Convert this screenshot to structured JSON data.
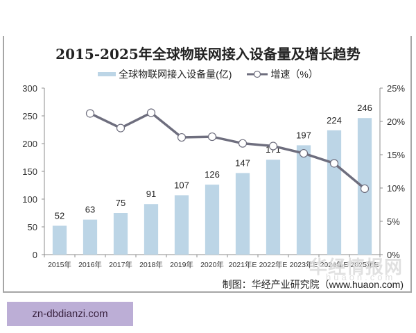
{
  "chart_data": {
    "type": "bar+line",
    "title": "2015-2025年全球物联网接入设备量及增长趋势",
    "categories": [
      "2015年",
      "2016年",
      "2017年",
      "2018年",
      "2019年",
      "2020年",
      "2021年E",
      "2022年E",
      "2023年E",
      "2024年E",
      "2025年E"
    ],
    "series": [
      {
        "name": "全球物联网接入设备量(亿)",
        "type": "bar",
        "axis": "left",
        "color": "#bcd5e6",
        "values": [
          52,
          63,
          75,
          91,
          107,
          126,
          147,
          171,
          197,
          224,
          246
        ]
      },
      {
        "name": "增速（%）",
        "type": "line",
        "axis": "right",
        "color": "#6e6e7e",
        "values": [
          null,
          21.2,
          19.0,
          21.3,
          17.6,
          17.7,
          16.7,
          16.3,
          15.2,
          13.7,
          9.9
        ]
      }
    ],
    "left_axis": {
      "ylim": [
        0,
        300
      ],
      "ticks": [
        "0",
        "50",
        "100",
        "150",
        "200",
        "250",
        "300"
      ]
    },
    "right_axis": {
      "ylim": [
        0,
        25
      ],
      "ticks": [
        "0%",
        "5%",
        "10%",
        "15%",
        "20%",
        "25%"
      ]
    },
    "legend_position": "top",
    "grid": false
  },
  "legend": {
    "bar_label": "全球物联网接入设备量(亿)",
    "line_label": "增速（%）"
  },
  "source": "制图：华经产业研究院（www.huaon.com)",
  "watermark": {
    "main": "华经情报网",
    "sub": "huaon.com"
  },
  "badge": "zn-dbdianzi.com"
}
